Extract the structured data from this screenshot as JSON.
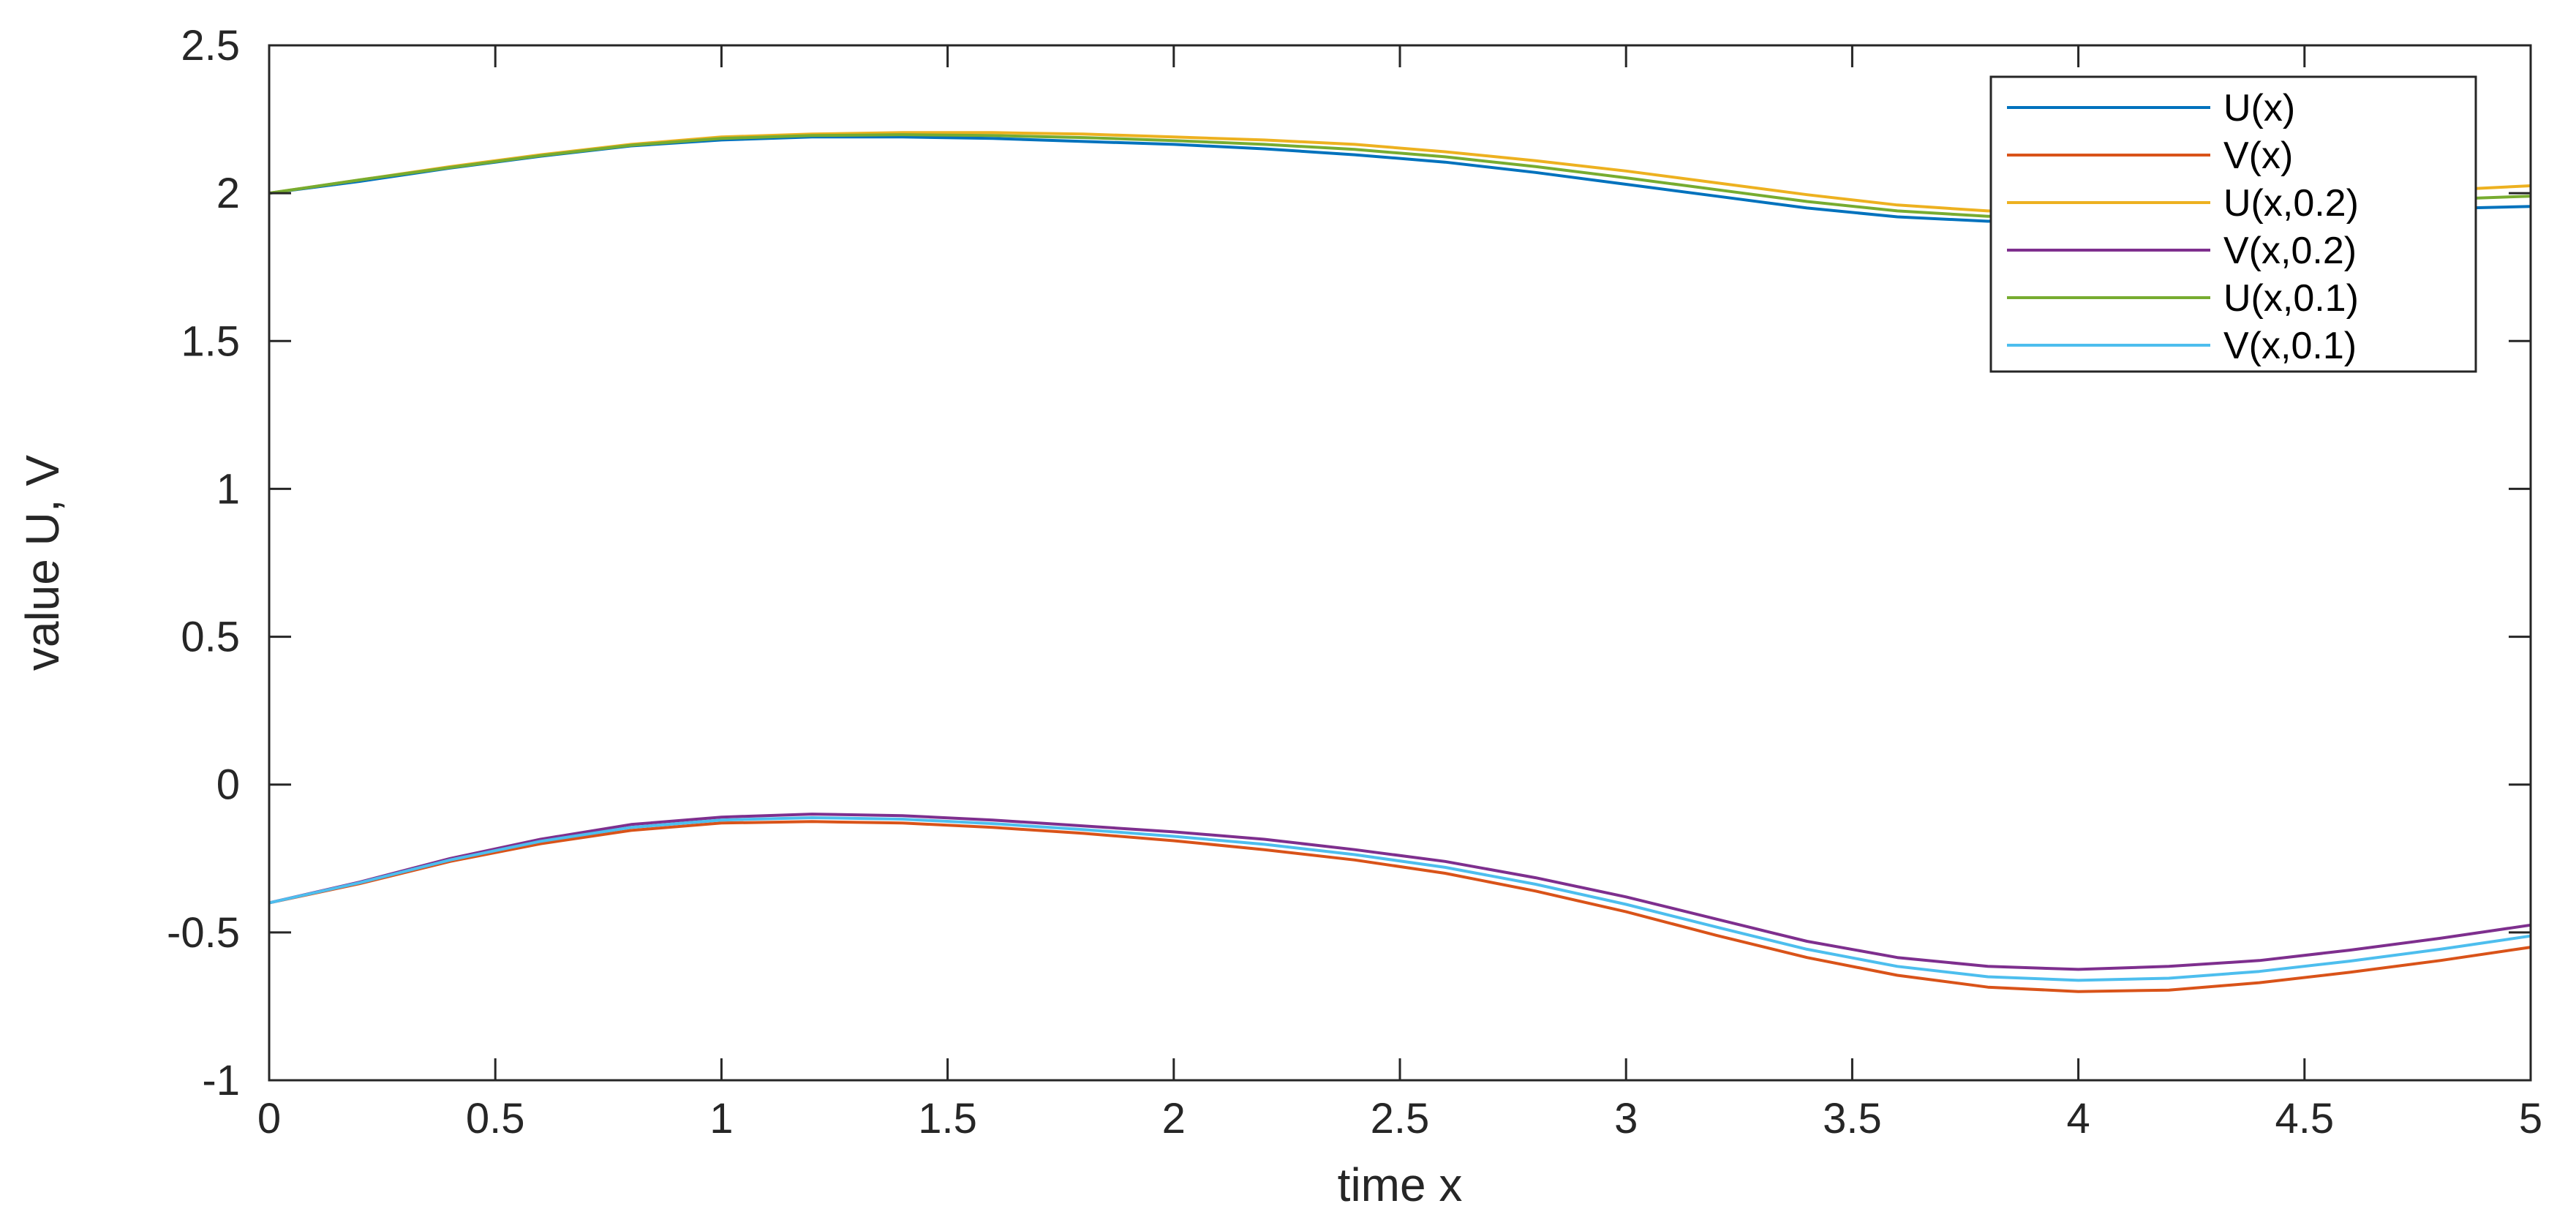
{
  "chart_data": {
    "type": "line",
    "xlabel": "time x",
    "ylabel": "value U, V",
    "xlim": [
      0,
      5
    ],
    "ylim": [
      -1,
      2.5
    ],
    "xticks": [
      0,
      0.5,
      1,
      1.5,
      2,
      2.5,
      3,
      3.5,
      4,
      4.5,
      5
    ],
    "xtick_labels": [
      "0",
      "0.5",
      "1",
      "1.5",
      "2",
      "2.5",
      "3",
      "3.5",
      "4",
      "4.5",
      "5"
    ],
    "yticks": [
      -1,
      -0.5,
      0,
      0.5,
      1,
      1.5,
      2,
      2.5
    ],
    "ytick_labels": [
      "-1",
      "-0.5",
      "0",
      "0.5",
      "1",
      "1.5",
      "2",
      "2.5"
    ],
    "grid": false,
    "legend_position": "top-right",
    "x": [
      0,
      0.2,
      0.4,
      0.6,
      0.8,
      1.0,
      1.2,
      1.4,
      1.6,
      1.8,
      2.0,
      2.2,
      2.4,
      2.6,
      2.8,
      3.0,
      3.2,
      3.4,
      3.6,
      3.8,
      4.0,
      4.2,
      4.4,
      4.6,
      4.8,
      5.0
    ],
    "series": [
      {
        "name": "U(x)",
        "color": "#0072BD",
        "values": [
          2.0,
          2.04,
          2.085,
          2.125,
          2.16,
          2.18,
          2.19,
          2.19,
          2.185,
          2.175,
          2.165,
          2.15,
          2.13,
          2.105,
          2.07,
          2.03,
          1.99,
          1.95,
          1.92,
          1.905,
          1.91,
          1.92,
          1.93,
          1.94,
          1.948,
          1.955
        ]
      },
      {
        "name": "V(x)",
        "color": "#D95319",
        "values": [
          -0.4,
          -0.335,
          -0.26,
          -0.2,
          -0.155,
          -0.13,
          -0.125,
          -0.13,
          -0.145,
          -0.165,
          -0.19,
          -0.22,
          -0.255,
          -0.3,
          -0.36,
          -0.43,
          -0.51,
          -0.585,
          -0.645,
          -0.685,
          -0.7,
          -0.695,
          -0.67,
          -0.635,
          -0.595,
          -0.55
        ]
      },
      {
        "name": "U(x,0.2)",
        "color": "#EDB120",
        "values": [
          2.0,
          2.045,
          2.09,
          2.13,
          2.165,
          2.19,
          2.2,
          2.205,
          2.205,
          2.2,
          2.19,
          2.18,
          2.165,
          2.14,
          2.11,
          2.075,
          2.035,
          1.995,
          1.96,
          1.94,
          1.94,
          1.955,
          1.975,
          1.995,
          2.01,
          2.025
        ]
      },
      {
        "name": "V(x,0.2)",
        "color": "#7E2F8E",
        "values": [
          -0.4,
          -0.33,
          -0.25,
          -0.185,
          -0.135,
          -0.11,
          -0.1,
          -0.105,
          -0.12,
          -0.14,
          -0.16,
          -0.185,
          -0.22,
          -0.26,
          -0.315,
          -0.38,
          -0.455,
          -0.53,
          -0.585,
          -0.615,
          -0.625,
          -0.615,
          -0.595,
          -0.56,
          -0.52,
          -0.475
        ]
      },
      {
        "name": "U(x,0.1)",
        "color": "#77AC30",
        "values": [
          2.0,
          2.045,
          2.087,
          2.127,
          2.162,
          2.185,
          2.195,
          2.198,
          2.195,
          2.188,
          2.178,
          2.165,
          2.148,
          2.123,
          2.09,
          2.052,
          2.012,
          1.972,
          1.94,
          1.922,
          1.925,
          1.938,
          1.953,
          1.968,
          1.979,
          1.99
        ]
      },
      {
        "name": "V(x,0.1)",
        "color": "#4DBEEE",
        "values": [
          -0.4,
          -0.332,
          -0.255,
          -0.192,
          -0.145,
          -0.12,
          -0.112,
          -0.117,
          -0.132,
          -0.152,
          -0.175,
          -0.202,
          -0.237,
          -0.28,
          -0.337,
          -0.405,
          -0.482,
          -0.557,
          -0.615,
          -0.65,
          -0.662,
          -0.655,
          -0.632,
          -0.597,
          -0.557,
          -0.512
        ]
      }
    ]
  }
}
